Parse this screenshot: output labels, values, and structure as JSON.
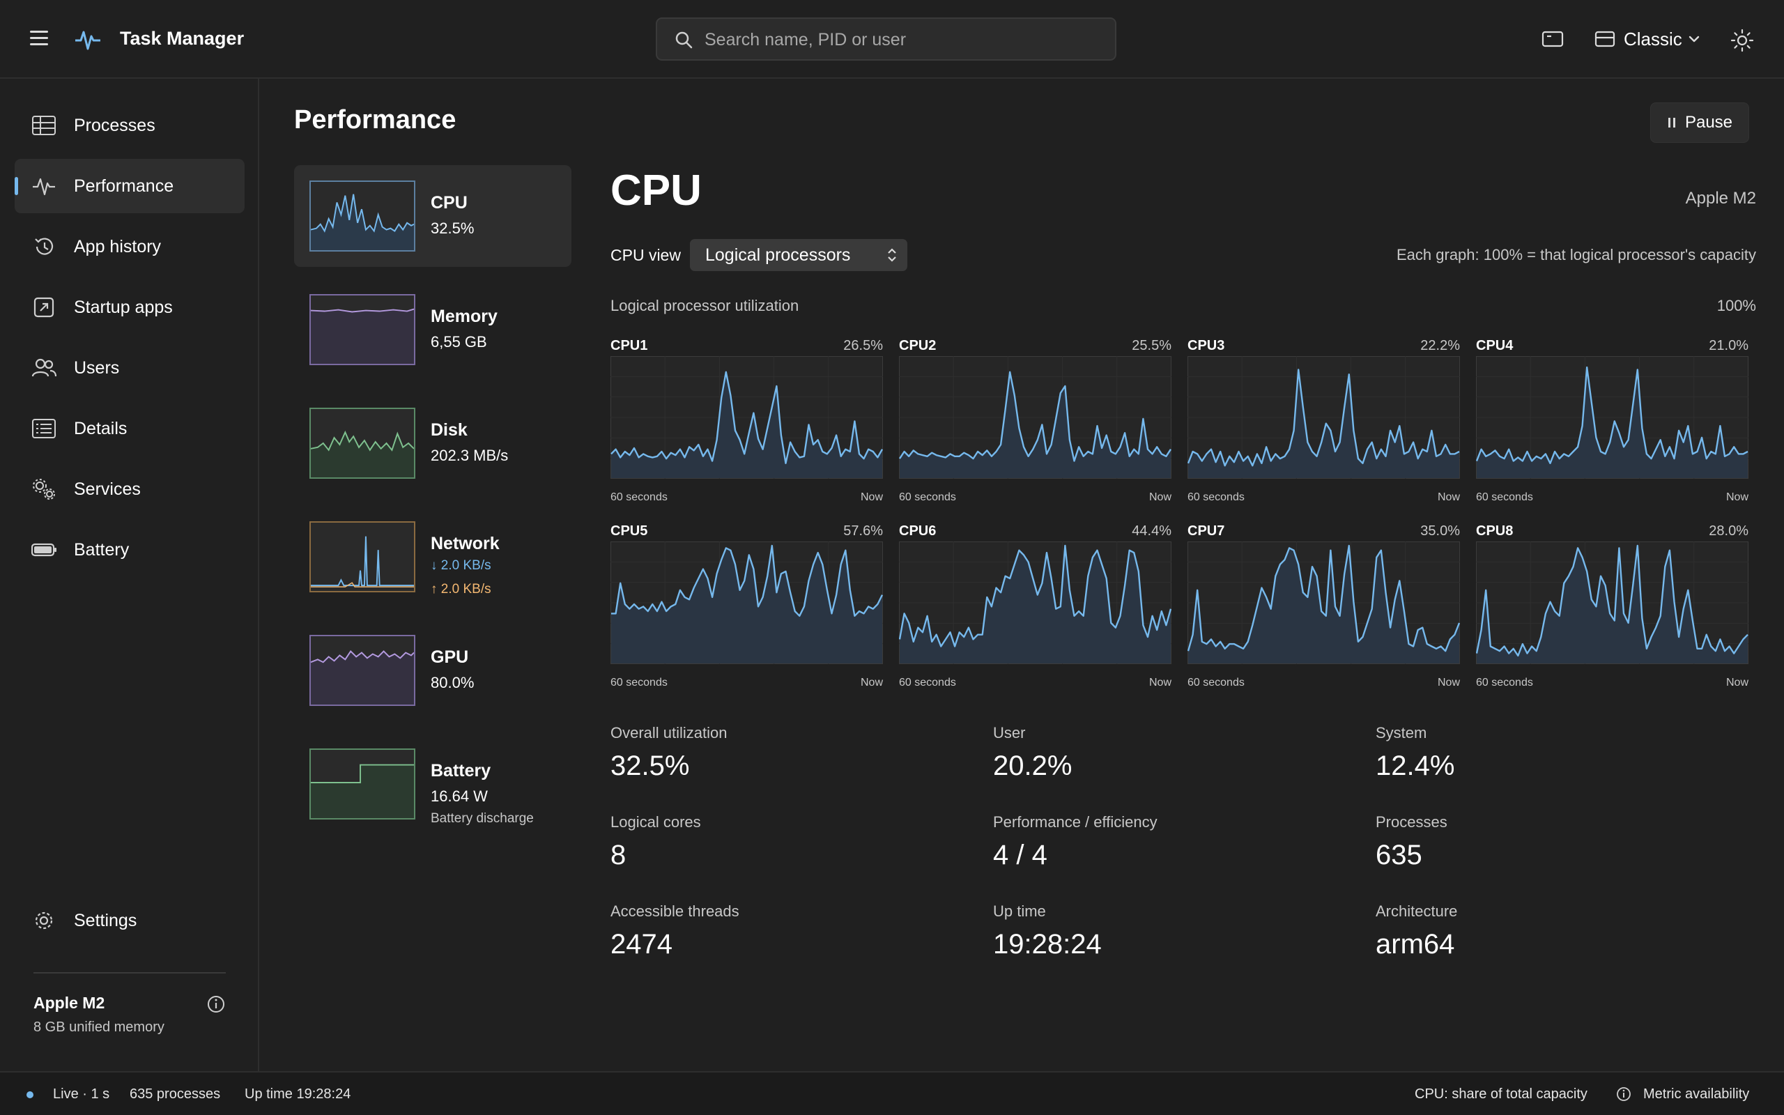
{
  "app": {
    "title": "Task Manager",
    "search_placeholder": "Search name, PID or user",
    "view_label": "Classic"
  },
  "sidebar": {
    "items": [
      {
        "label": "Processes",
        "icon": "grid-icon"
      },
      {
        "label": "Performance",
        "icon": "pulse-icon",
        "active": true
      },
      {
        "label": "App history",
        "icon": "history-icon"
      },
      {
        "label": "Startup apps",
        "icon": "startup-icon"
      },
      {
        "label": "Users",
        "icon": "users-icon"
      },
      {
        "label": "Details",
        "icon": "list-icon"
      },
      {
        "label": "Services",
        "icon": "services-icon"
      },
      {
        "label": "Battery",
        "icon": "battery-icon"
      }
    ],
    "settings_label": "Settings",
    "device_name": "Apple M2",
    "device_memory": "8 GB unified memory"
  },
  "page": {
    "title": "Performance",
    "pause_label": "Pause"
  },
  "resources": [
    {
      "name": "CPU",
      "value": "32.5%",
      "color": "#76b9ed"
    },
    {
      "name": "Memory",
      "value": "6,55 GB",
      "color": "#b49ae0"
    },
    {
      "name": "Disk",
      "value": "202.3 MB/s",
      "color": "#7fc18f"
    },
    {
      "name": "Network",
      "down": "↓ 2.0 KB/s",
      "up": "↑ 2.0 KB/s",
      "down_color": "#76b9ed",
      "up_color": "#f4b872",
      "color": "#e6a35b"
    },
    {
      "name": "GPU",
      "value": "80.0%",
      "color": "#b49ae0"
    },
    {
      "name": "Battery",
      "value": "16.64 W",
      "sub": "Battery discharge",
      "color": "#7fc18f"
    }
  ],
  "cpu": {
    "title": "CPU",
    "model": "Apple M2",
    "view_label": "CPU view",
    "view_value": "Logical processors",
    "graph_note": "Each graph: 100% = that logical processor's capacity",
    "util_label": "Logical processor utilization",
    "util_max": "100%",
    "axis_left": "60 seconds",
    "axis_right": "Now",
    "cores": [
      {
        "name": "CPU1",
        "value": "26.5%",
        "samples": [
          20,
          24,
          17,
          22,
          19,
          25,
          17,
          20,
          18,
          17,
          18,
          22,
          16,
          21,
          19,
          24,
          17,
          26,
          23,
          28,
          18,
          24,
          14,
          32,
          68,
          90,
          70,
          40,
          32,
          20,
          38,
          55,
          33,
          24,
          42,
          60,
          78,
          36,
          12,
          30,
          22,
          17,
          18,
          45,
          28,
          32,
          22,
          20,
          25,
          36,
          18,
          24,
          22,
          48,
          20,
          16,
          24,
          22,
          17,
          24
        ]
      },
      {
        "name": "CPU2",
        "value": "25.5%",
        "samples": [
          16,
          22,
          18,
          23,
          20,
          19,
          18,
          21,
          19,
          18,
          17,
          20,
          18,
          18,
          21,
          19,
          16,
          22,
          19,
          23,
          18,
          22,
          28,
          58,
          90,
          70,
          42,
          26,
          18,
          24,
          32,
          45,
          20,
          28,
          50,
          72,
          78,
          32,
          14,
          26,
          18,
          22,
          20,
          44,
          25,
          36,
          22,
          20,
          26,
          38,
          18,
          24,
          20,
          50,
          24,
          20,
          26,
          20,
          18,
          24
        ]
      },
      {
        "name": "CPU3",
        "value": "22.2%",
        "samples": [
          12,
          22,
          20,
          14,
          20,
          24,
          13,
          22,
          10,
          18,
          13,
          22,
          14,
          18,
          10,
          20,
          12,
          26,
          14,
          20,
          16,
          18,
          24,
          40,
          92,
          60,
          30,
          22,
          18,
          30,
          46,
          40,
          22,
          30,
          60,
          88,
          40,
          16,
          12,
          24,
          30,
          16,
          24,
          18,
          40,
          30,
          44,
          20,
          22,
          30,
          16,
          24,
          22,
          40,
          18,
          20,
          28,
          20,
          20,
          22
        ]
      },
      {
        "name": "CPU4",
        "value": "21.0%",
        "samples": [
          14,
          24,
          18,
          20,
          23,
          18,
          16,
          24,
          14,
          17,
          14,
          22,
          14,
          18,
          16,
          20,
          12,
          22,
          16,
          20,
          18,
          22,
          26,
          44,
          94,
          64,
          34,
          22,
          20,
          30,
          48,
          38,
          26,
          32,
          62,
          92,
          42,
          20,
          16,
          24,
          32,
          18,
          26,
          16,
          40,
          30,
          44,
          20,
          22,
          34,
          16,
          22,
          20,
          44,
          18,
          20,
          26,
          20,
          20,
          22
        ]
      },
      {
        "name": "CPU5",
        "value": "57.6%",
        "samples": [
          42,
          42,
          68,
          50,
          46,
          50,
          46,
          48,
          44,
          50,
          44,
          52,
          44,
          48,
          50,
          62,
          56,
          54,
          64,
          72,
          80,
          72,
          56,
          76,
          88,
          98,
          96,
          84,
          62,
          70,
          92,
          80,
          48,
          56,
          74,
          100,
          60,
          76,
          78,
          60,
          44,
          40,
          48,
          70,
          84,
          94,
          84,
          62,
          42,
          58,
          84,
          96,
          62,
          40,
          44,
          42,
          48,
          46,
          50,
          58
        ]
      },
      {
        "name": "CPU6",
        "value": "44.4%",
        "samples": [
          20,
          42,
          34,
          18,
          30,
          26,
          40,
          18,
          24,
          14,
          20,
          26,
          14,
          26,
          22,
          30,
          20,
          24,
          24,
          56,
          48,
          64,
          60,
          74,
          72,
          84,
          96,
          92,
          86,
          72,
          58,
          68,
          94,
          72,
          46,
          48,
          100,
          62,
          40,
          44,
          40,
          74,
          90,
          96,
          84,
          72,
          34,
          30,
          40,
          66,
          96,
          94,
          78,
          32,
          22,
          40,
          28,
          44,
          32,
          46
        ]
      },
      {
        "name": "CPU7",
        "value": "35.0%",
        "samples": [
          10,
          24,
          62,
          18,
          16,
          20,
          14,
          18,
          12,
          16,
          16,
          14,
          12,
          18,
          32,
          48,
          64,
          56,
          46,
          74,
          84,
          88,
          98,
          96,
          84,
          60,
          56,
          82,
          74,
          44,
          40,
          96,
          48,
          40,
          76,
          100,
          52,
          18,
          22,
          34,
          46,
          90,
          96,
          60,
          30,
          54,
          70,
          44,
          16,
          14,
          28,
          30,
          16,
          14,
          12,
          14,
          10,
          20,
          24,
          34
        ]
      },
      {
        "name": "CPU8",
        "value": "28.0%",
        "samples": [
          8,
          28,
          62,
          14,
          12,
          10,
          14,
          8,
          12,
          6,
          16,
          8,
          14,
          10,
          22,
          42,
          52,
          44,
          40,
          68,
          74,
          82,
          98,
          90,
          78,
          54,
          48,
          74,
          66,
          42,
          36,
          98,
          42,
          34,
          66,
          100,
          38,
          12,
          22,
          30,
          40,
          82,
          96,
          52,
          22,
          46,
          62,
          36,
          12,
          12,
          24,
          14,
          10,
          20,
          10,
          14,
          8,
          14,
          20,
          24
        ]
      }
    ]
  },
  "stats": [
    {
      "label": "Overall utilization",
      "value": "32.5%"
    },
    {
      "label": "User",
      "value": "20.2%"
    },
    {
      "label": "System",
      "value": "12.4%"
    },
    {
      "label": "Logical cores",
      "value": "8"
    },
    {
      "label": "Performance / efficiency",
      "value": "4 / 4"
    },
    {
      "label": "Processes",
      "value": "635"
    },
    {
      "label": "Accessible threads",
      "value": "2474"
    },
    {
      "label": "Up time",
      "value": "19:28:24"
    },
    {
      "label": "Architecture",
      "value": "arm64"
    }
  ],
  "status": {
    "live": "Live · 1 s",
    "processes": "635 processes",
    "uptime": "Up time 19:28:24",
    "cpu_note": "CPU: share of total capacity",
    "metric": "Metric availability"
  },
  "colors": {
    "accent": "#76b9ed",
    "memory": "#b49ae0",
    "disk": "#7fc18f",
    "network_up": "#f4b872"
  }
}
